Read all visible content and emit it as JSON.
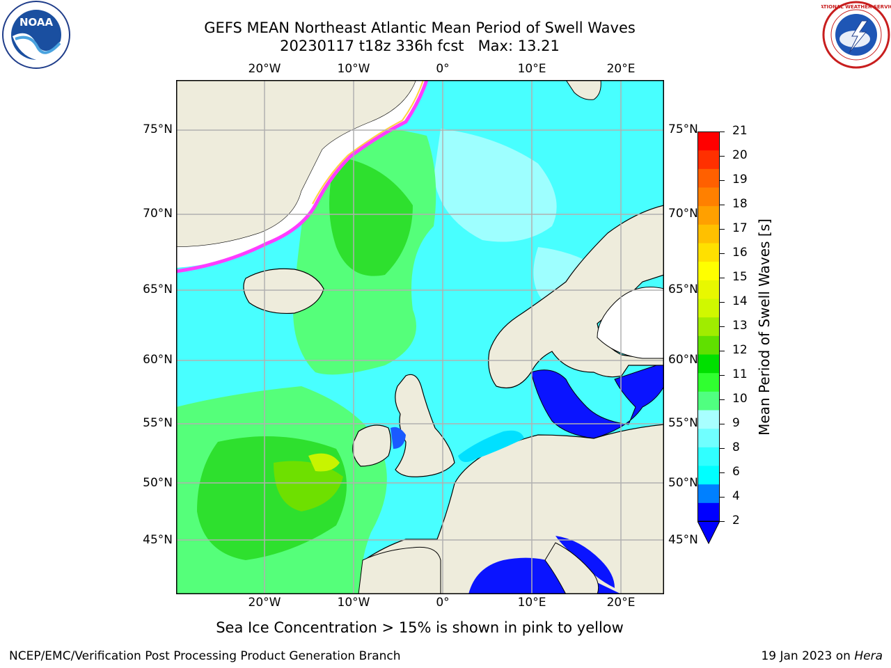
{
  "header": {
    "title_line1": "GEFS MEAN Northeast Atlantic Mean Period of Swell Waves",
    "title_line2": "20230117 t18z 336h fcst   Max: 13.21"
  },
  "logos": {
    "left": {
      "name": "NOAA",
      "text": "NOAA",
      "ring_text": "NATIONAL OCEANIC AND ATMOSPHERIC ADMINISTRATION • U.S. DEPARTMENT OF COMMERCE"
    },
    "right": {
      "name": "National Weather Service",
      "ring_text": "NATIONAL WEATHER SERVICE"
    }
  },
  "map": {
    "lon_labels": [
      "20°W",
      "10°W",
      "0°",
      "10°E",
      "20°E"
    ],
    "lat_labels": [
      "75°N",
      "70°N",
      "65°N",
      "60°N",
      "55°N",
      "50°N",
      "45°N"
    ],
    "gridlines": true,
    "colors": {
      "land": "#eeecdc",
      "ice_free_white": "#ffffff",
      "coast": "#000000",
      "grid": "#b0b0b0"
    }
  },
  "colorbar": {
    "label": "Mean Period of Swell Waves [s]",
    "ticks": [
      "21",
      "20",
      "19",
      "18",
      "17",
      "16",
      "15",
      "14",
      "13",
      "12",
      "11",
      "10",
      "9",
      "8",
      "6",
      "4",
      "2"
    ],
    "extend": "min",
    "colors": [
      "#0000ff",
      "#0080ff",
      "#00ffff",
      "#30ffff",
      "#70ffff",
      "#a8ffff",
      "#50ff80",
      "#30ff30",
      "#00e000",
      "#60e000",
      "#a0ec00",
      "#d0f800",
      "#e8f800",
      "#ffff00",
      "#ffe000",
      "#ffc000",
      "#ffa000",
      "#ff8000",
      "#ff6000",
      "#ff3000",
      "#ff0000"
    ]
  },
  "footer": {
    "note": "Sea Ice Concentration > 15% is shown in pink to yellow",
    "credit_left": "NCEP/EMC/Verification Post Processing Product Generation Branch",
    "credit_right_date": "19 Jan 2023 on ",
    "credit_right_host": "Hera"
  }
}
